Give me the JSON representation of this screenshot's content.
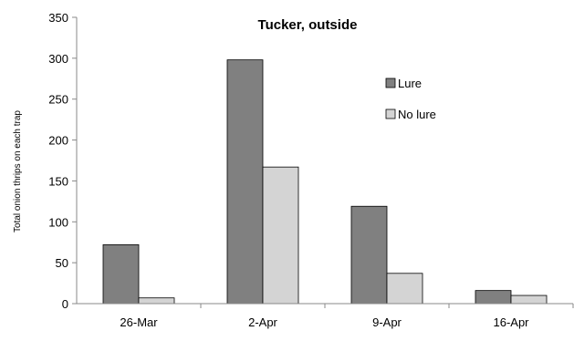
{
  "chart_data": {
    "type": "bar",
    "title": "Tucker, outside",
    "xlabel": "",
    "ylabel": "Total onion thrips on each trap",
    "categories": [
      "26-Mar",
      "2-Apr",
      "9-Apr",
      "16-Apr"
    ],
    "ylim": [
      0,
      350
    ],
    "yticks": [
      0,
      50,
      100,
      150,
      200,
      250,
      300,
      350
    ],
    "grid": false,
    "legend_position": "right",
    "series": [
      {
        "name": "Lure",
        "color": "#808080",
        "values": [
          72,
          298,
          119,
          16
        ]
      },
      {
        "name": "No lure",
        "color": "#d4d4d4",
        "values": [
          7,
          167,
          37,
          10
        ]
      }
    ]
  }
}
